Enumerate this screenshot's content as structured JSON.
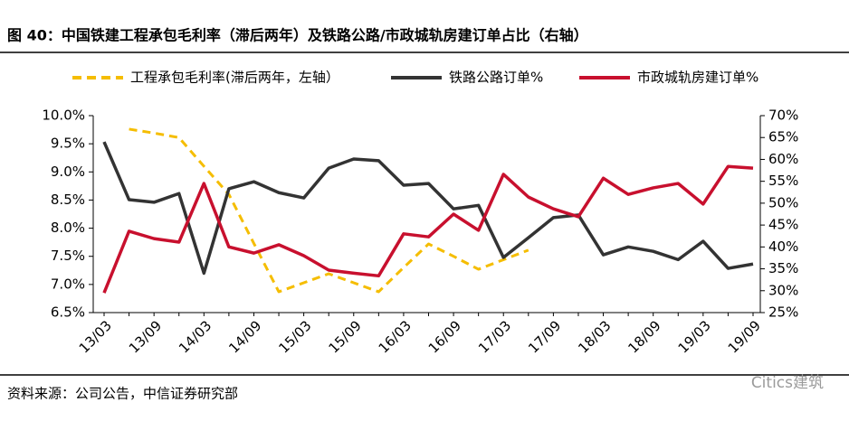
{
  "title": "图 40：中国铁建工程承包毛利率（滞后两年）及铁路公路/市政城轨房建订单占比（右轴）",
  "source": "资料来源：公司公告，中信证券研究部",
  "watermark": "Citics建筑",
  "chart_data": {
    "type": "line",
    "categories": [
      "13/03",
      null,
      "13/09",
      null,
      "14/03",
      null,
      "14/09",
      null,
      "15/03",
      null,
      "15/09",
      null,
      "16/03",
      null,
      "16/09",
      null,
      "17/03",
      null,
      "17/09",
      null,
      "18/03",
      null,
      "18/09",
      null,
      "19/03",
      null,
      "19/09"
    ],
    "series": [
      {
        "name": "工程承包毛利率(滞后两年，左轴）",
        "color": "#f5bd00",
        "dashed": true,
        "axis": "y",
        "values": [
          null,
          9.76,
          9.69,
          9.61,
          9.1,
          8.6,
          7.73,
          6.87,
          7.03,
          7.19,
          7.03,
          6.87,
          7.3,
          7.72,
          7.5,
          7.27,
          7.44,
          7.61,
          null,
          null,
          null,
          null,
          null,
          null,
          null,
          null,
          null
        ]
      },
      {
        "name": "铁路公路订单%",
        "color": "#333333",
        "axis": "y2",
        "values": [
          64,
          50.8,
          50.2,
          52.2,
          34,
          53.3,
          54.9,
          52.4,
          51.2,
          58,
          60.1,
          59.7,
          54.1,
          54.5,
          48.7,
          49.5,
          37.6,
          42.1,
          46.7,
          47.3,
          38.2,
          40,
          39,
          37.1,
          41.3,
          35.1,
          36.1
        ]
      },
      {
        "name": "市政城轨房建订单%",
        "color": "#c8102e",
        "axis": "y2",
        "values": [
          29.5,
          43.6,
          41.9,
          41.1,
          54.5,
          40,
          38.6,
          40.5,
          38,
          34.7,
          34,
          33.4,
          43,
          42.3,
          47.5,
          43.8,
          56.6,
          51.4,
          48.7,
          46.9,
          55.7,
          52,
          53.5,
          54.5,
          49.8,
          58.4,
          58
        ]
      }
    ],
    "ylim": [
      6.5,
      10
    ],
    "yticks": [
      {
        "value": 6.5,
        "label": "6.5%"
      },
      {
        "value": 7,
        "label": "7.0%"
      },
      {
        "value": 7.5,
        "label": "7.5%"
      },
      {
        "value": 8,
        "label": "8.0%"
      },
      {
        "value": 8.5,
        "label": "8.5%"
      },
      {
        "value": 9,
        "label": "9.0%"
      },
      {
        "value": 9.5,
        "label": "9.5%"
      },
      {
        "value": 10,
        "label": "10.0%"
      }
    ],
    "y2lim": [
      25,
      70
    ],
    "y2ticks": [
      {
        "value": 25,
        "label": "25%"
      },
      {
        "value": 30,
        "label": "30%"
      },
      {
        "value": 35,
        "label": "35%"
      },
      {
        "value": 40,
        "label": "40%"
      },
      {
        "value": 45,
        "label": "45%"
      },
      {
        "value": 50,
        "label": "50%"
      },
      {
        "value": 55,
        "label": "55%"
      },
      {
        "value": 60,
        "label": "60%"
      },
      {
        "value": 65,
        "label": "65%"
      },
      {
        "value": 70,
        "label": "70%"
      }
    ],
    "grid": false,
    "legend": "top"
  }
}
